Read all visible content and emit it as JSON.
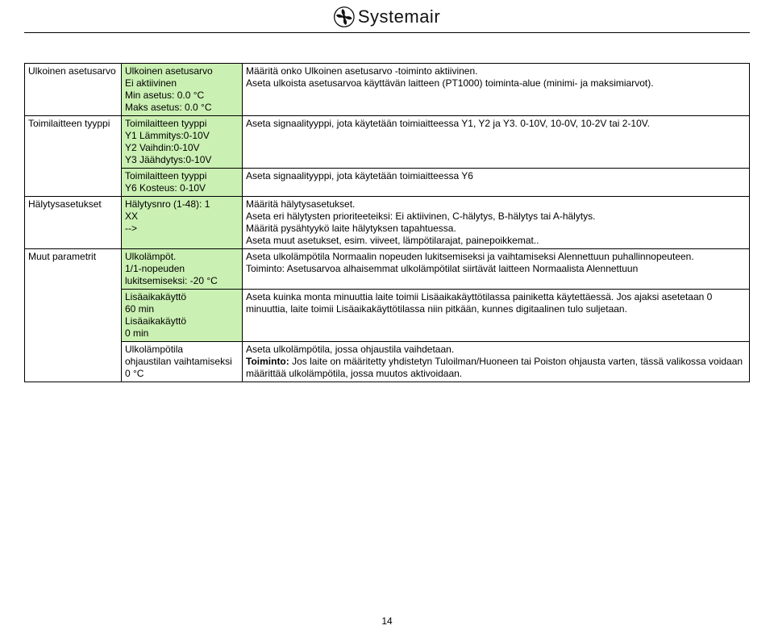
{
  "brand": "Systemair",
  "page_number": "14",
  "rows": [
    {
      "col1": "Ulkoinen asetusarvo",
      "col2": "Ulkoinen asetusarvo\nEi aktiivinen\nMin asetus:  0.0  °C\nMaks asetus:  0.0  °C",
      "col2_class": "green",
      "col3": "Määritä onko Ulkoinen asetusarvo -toiminto aktiivinen.\nAseta ulkoista asetusarvoa käyttävän laitteen (PT1000) toiminta-alue (minimi- ja maksimiarvot).",
      "col1_rowspan": 1
    },
    {
      "col1": "Toimilaitteen tyyppi",
      "col2": "Toimilaitteen tyyppi\nY1 Lämmitys:0-10V\nY2 Vaihdin:0-10V\nY3 Jäähdytys:0-10V",
      "col2_class": "green",
      "col3": "Aseta signaalityyppi, jota käytetään toimiaitteessa Y1, Y2 ja Y3. 0-10V, 10-0V, 10-2V tai 2-10V.",
      "col1_rowspan": 2
    },
    {
      "col1": "",
      "col2": "Toimilaitteen tyyppi\nY6 Kosteus: 0-10V",
      "col2_class": "green",
      "col3": "Aseta signaalityyppi, jota käytetään toimiaitteessa Y6"
    },
    {
      "col1": "Hälytysasetukset",
      "col2": "Hälytysnro (1-48):   1\nXX\n                              -->",
      "col2_class": "green",
      "col3": "Määritä hälytysasetukset.\nAseta eri hälytysten prioriteeteiksi: Ei aktiivinen, C-hälytys, B-hälytys tai A-hälytys.\nMääritä pysähtyykö laite hälytyksen tapahtuessa.\nAseta muut asetukset, esim. viiveet, lämpötilarajat, painepoikkemat..",
      "col1_rowspan": 1
    },
    {
      "col1": "Muut parametrit",
      "col2": "Ulkolämpöt.\n1/1-nopeuden\nlukitsemiseksi: -20  °C",
      "col2_class": "green",
      "col3": "Aseta ulkolämpötila Normaalin nopeuden lukitsemiseksi ja vaihtamiseksi Alennettuun puhallinnopeuteen.\nToiminto: Asetusarvoa alhaisemmat ulkolämpötilat siirtävät laitteen Normaalista Alennettuun",
      "col1_rowspan": 3
    },
    {
      "col1": "",
      "col2": "Lisäaikakäyttö\n60 min\nLisäaikakäyttö\n0 min",
      "col2_class": "green",
      "col3": "Aseta kuinka monta minuuttia laite toimii Lisäaikakäyttötilassa painiketta käytettäessä. Jos ajaksi asetetaan 0 minuuttia, laite toimii Lisäaikakäyttötilassa niin pitkään, kunnes digitaalinen tulo suljetaan."
    },
    {
      "col1": "",
      "col2": "Ulkolämpötila\nohjaustilan vaihtamiseksi\n  0  °C",
      "col2_class": "white",
      "col3": "Aseta ulkolämpötila, jossa ohjaustila vaihdetaan.\n<b>Toiminto:</b> Jos laite on määritetty yhdistetyn Tuloilman/Huoneen tai Poiston ohjausta varten, tässä valikossa voidaan määrittää ulkolämpötila, jossa muutos aktivoidaan."
    }
  ]
}
